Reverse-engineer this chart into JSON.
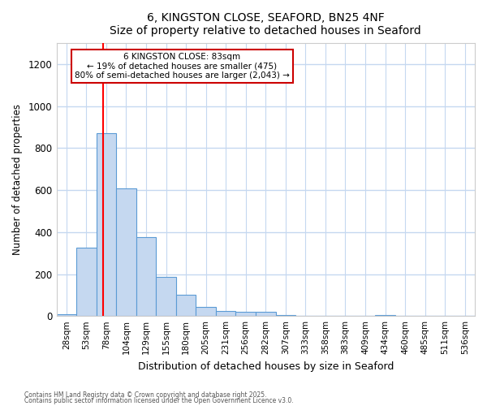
{
  "title1": "6, KINGSTON CLOSE, SEAFORD, BN25 4NF",
  "title2": "Size of property relative to detached houses in Seaford",
  "xlabel": "Distribution of detached houses by size in Seaford",
  "ylabel": "Number of detached properties",
  "bin_labels": [
    "28sqm",
    "53sqm",
    "78sqm",
    "104sqm",
    "129sqm",
    "155sqm",
    "180sqm",
    "205sqm",
    "231sqm",
    "256sqm",
    "282sqm",
    "307sqm",
    "333sqm",
    "358sqm",
    "383sqm",
    "409sqm",
    "434sqm",
    "460sqm",
    "485sqm",
    "511sqm",
    "536sqm"
  ],
  "bar_values": [
    10,
    325,
    870,
    607,
    378,
    185,
    100,
    45,
    25,
    20,
    20,
    5,
    0,
    0,
    0,
    0,
    5,
    0,
    0,
    0,
    0
  ],
  "bar_color": "#c5d8f0",
  "bar_edge_color": "#5b9bd5",
  "plot_bg_color": "#ffffff",
  "fig_bg_color": "#ffffff",
  "grid_color": "#c5d8f0",
  "red_line_x": 1.86,
  "annotation_text": "6 KINGSTON CLOSE: 83sqm\n← 19% of detached houses are smaller (475)\n80% of semi-detached houses are larger (2,043) →",
  "annotation_box_color": "#ffffff",
  "annotation_edge_color": "#cc0000",
  "ylim": [
    0,
    1300
  ],
  "yticks": [
    0,
    200,
    400,
    600,
    800,
    1000,
    1200
  ],
  "footnote1": "Contains HM Land Registry data © Crown copyright and database right 2025.",
  "footnote2": "Contains public sector information licensed under the Open Government Licence v3.0."
}
